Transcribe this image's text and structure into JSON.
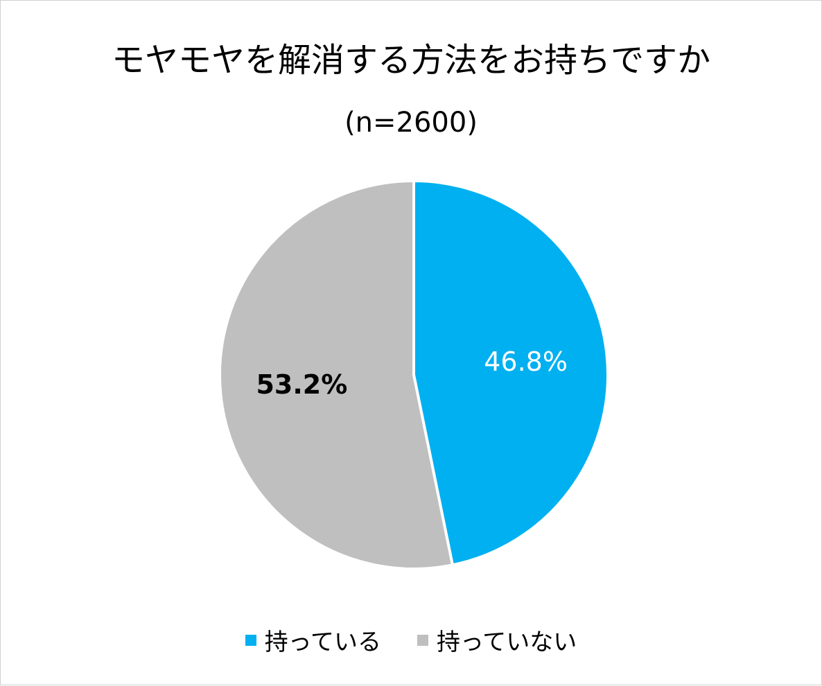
{
  "chart_data": {
    "type": "pie",
    "title": "モヤモヤを解消する方法をお持ちですか",
    "subtitle": "(n=2600)",
    "slices": [
      {
        "name": "持っている",
        "value": 46.8,
        "label": "46.8%",
        "color": "#00B0F0",
        "label_color": "#ffffff",
        "label_bold": false
      },
      {
        "name": "持っていない",
        "value": 53.2,
        "label": "53.2%",
        "color": "#BFBFBF",
        "label_color": "#000000",
        "label_bold": true
      }
    ],
    "legend_position": "bottom"
  }
}
